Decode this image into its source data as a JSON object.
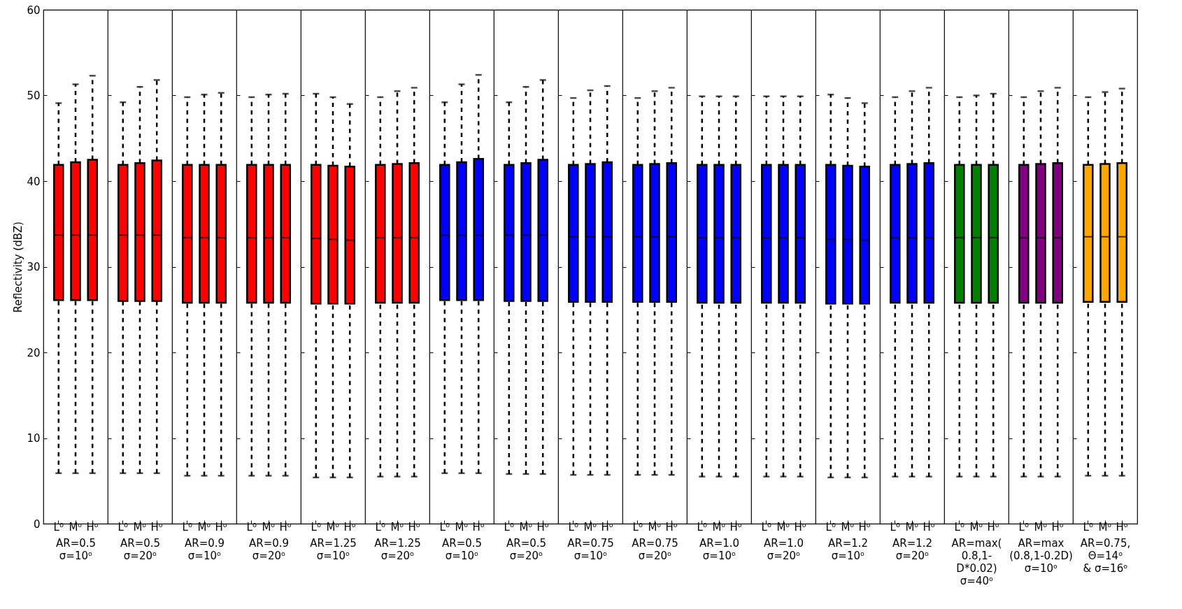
{
  "chart_data": [
    {
      "type": "box",
      "ylabel": "Reflectivity (dBZ)",
      "xlabel": "AR=0.5\nσ=10ᵒ",
      "categories": [
        "L⁰",
        "Mᵒ",
        "Hᵒ"
      ],
      "colors": [
        "#ff0000",
        "#ff0000",
        "#ff0000"
      ],
      "ylim": [
        0,
        60
      ],
      "yticks": [
        0,
        10,
        20,
        30,
        40,
        50,
        60
      ],
      "boxes": [
        {
          "low": 5.9,
          "q1": 26.1,
          "median": 33.7,
          "q3": 41.9,
          "high": 49.1
        },
        {
          "low": 5.9,
          "q1": 26.1,
          "median": 33.7,
          "q3": 42.2,
          "high": 51.3
        },
        {
          "low": 5.9,
          "q1": 26.1,
          "median": 33.7,
          "q3": 42.5,
          "high": 52.3
        }
      ]
    },
    {
      "type": "box",
      "xlabel": "AR=0.5\nσ=20ᵒ",
      "categories": [
        "L⁰",
        "Mᵒ",
        "Hᵒ"
      ],
      "colors": [
        "#ff0000",
        "#ff0000",
        "#ff0000"
      ],
      "ylim": [
        0,
        60
      ],
      "yticks": [
        0,
        10,
        20,
        30,
        40,
        50,
        60
      ],
      "tick_labels": "x",
      "boxes": [
        {
          "low": 5.9,
          "q1": 26.0,
          "median": 33.7,
          "q3": 41.9,
          "high": 49.2
        },
        {
          "low": 5.9,
          "q1": 26.0,
          "median": 33.7,
          "q3": 42.1,
          "high": 51.0
        },
        {
          "low": 5.9,
          "q1": 26.0,
          "median": 33.7,
          "q3": 42.4,
          "high": 51.8
        }
      ]
    },
    {
      "type": "box",
      "xlabel": "AR=0.9\nσ=10ᵒ",
      "categories": [
        "L⁰",
        "Mᵒ",
        "Hᵒ"
      ],
      "colors": [
        "#ff0000",
        "#ff0000",
        "#ff0000"
      ],
      "ylim": [
        0,
        60
      ],
      "yticks": [
        0,
        10,
        20,
        30,
        40,
        50,
        60
      ],
      "tick_labels": "x",
      "boxes": [
        {
          "low": 5.6,
          "q1": 25.8,
          "median": 33.4,
          "q3": 41.9,
          "high": 49.8
        },
        {
          "low": 5.6,
          "q1": 25.8,
          "median": 33.4,
          "q3": 41.9,
          "high": 50.1
        },
        {
          "low": 5.6,
          "q1": 25.8,
          "median": 33.4,
          "q3": 41.9,
          "high": 50.3
        }
      ]
    },
    {
      "type": "box",
      "xlabel": "AR=0.9\nσ=20ᵒ",
      "categories": [
        "L⁰",
        "Mᵒ",
        "Hᵒ"
      ],
      "colors": [
        "#ff0000",
        "#ff0000",
        "#ff0000"
      ],
      "ylim": [
        0,
        60
      ],
      "yticks": [
        0,
        10,
        20,
        30,
        40,
        50,
        60
      ],
      "tick_labels": "x",
      "boxes": [
        {
          "low": 5.6,
          "q1": 25.8,
          "median": 33.4,
          "q3": 41.9,
          "high": 49.8
        },
        {
          "low": 5.6,
          "q1": 25.8,
          "median": 33.4,
          "q3": 41.9,
          "high": 50.1
        },
        {
          "low": 5.6,
          "q1": 25.8,
          "median": 33.4,
          "q3": 41.9,
          "high": 50.2
        }
      ]
    },
    {
      "type": "box",
      "xlabel": "AR=1.25\nσ=10ᵒ",
      "categories": [
        "L⁰",
        "Mᵒ",
        "Hᵒ"
      ],
      "colors": [
        "#ff0000",
        "#ff0000",
        "#ff0000"
      ],
      "ylim": [
        0,
        60
      ],
      "yticks": [
        0,
        10,
        20,
        30,
        40,
        50,
        60
      ],
      "tick_labels": "x",
      "boxes": [
        {
          "low": 5.4,
          "q1": 25.7,
          "median": 33.3,
          "q3": 41.9,
          "high": 50.2
        },
        {
          "low": 5.4,
          "q1": 25.7,
          "median": 33.2,
          "q3": 41.8,
          "high": 49.8
        },
        {
          "low": 5.4,
          "q1": 25.7,
          "median": 33.1,
          "q3": 41.7,
          "high": 49.0
        }
      ]
    },
    {
      "type": "box",
      "xlabel": "AR=1.25\nσ=20ᵒ",
      "categories": [
        "L⁰",
        "Mᵒ",
        "Hᵒ"
      ],
      "colors": [
        "#ff0000",
        "#ff0000",
        "#ff0000"
      ],
      "ylim": [
        0,
        60
      ],
      "yticks": [
        0,
        10,
        20,
        30,
        40,
        50,
        60
      ],
      "tick_labels": "x",
      "boxes": [
        {
          "low": 5.5,
          "q1": 25.8,
          "median": 33.4,
          "q3": 41.9,
          "high": 49.8
        },
        {
          "low": 5.5,
          "q1": 25.8,
          "median": 33.4,
          "q3": 42.0,
          "high": 50.5
        },
        {
          "low": 5.5,
          "q1": 25.8,
          "median": 33.4,
          "q3": 42.1,
          "high": 50.9
        }
      ]
    },
    {
      "type": "box",
      "xlabel": "AR=0.5\nσ=10ᵒ",
      "categories": [
        "L⁰",
        "Mᵒ",
        "Hᵒ"
      ],
      "colors": [
        "#0000ff",
        "#0000ff",
        "#0000ff"
      ],
      "ylim": [
        0,
        60
      ],
      "yticks": [
        0,
        10,
        20,
        30,
        40,
        50,
        60
      ],
      "tick_labels": "x",
      "boxes": [
        {
          "low": 5.9,
          "q1": 26.1,
          "median": 33.7,
          "q3": 41.9,
          "high": 49.2
        },
        {
          "low": 5.9,
          "q1": 26.1,
          "median": 33.7,
          "q3": 42.2,
          "high": 51.3
        },
        {
          "low": 5.9,
          "q1": 26.1,
          "median": 33.7,
          "q3": 42.6,
          "high": 52.4
        }
      ]
    },
    {
      "type": "box",
      "xlabel": "AR=0.5\nσ=20ᵒ",
      "categories": [
        "L⁰",
        "Mᵒ",
        "Hᵒ"
      ],
      "colors": [
        "#0000ff",
        "#0000ff",
        "#0000ff"
      ],
      "ylim": [
        0,
        60
      ],
      "yticks": [
        0,
        10,
        20,
        30,
        40,
        50,
        60
      ],
      "tick_labels": "x",
      "boxes": [
        {
          "low": 5.8,
          "q1": 26.0,
          "median": 33.7,
          "q3": 41.9,
          "high": 49.2
        },
        {
          "low": 5.8,
          "q1": 26.0,
          "median": 33.7,
          "q3": 42.1,
          "high": 51.0
        },
        {
          "low": 5.8,
          "q1": 26.0,
          "median": 33.7,
          "q3": 42.5,
          "high": 51.8
        }
      ]
    },
    {
      "type": "box",
      "xlabel": "AR=0.75\nσ=10ᵒ",
      "categories": [
        "L⁰",
        "Mᵒ",
        "Hᵒ"
      ],
      "colors": [
        "#0000ff",
        "#0000ff",
        "#0000ff"
      ],
      "ylim": [
        0,
        60
      ],
      "yticks": [
        0,
        10,
        20,
        30,
        40,
        50,
        60
      ],
      "tick_labels": "x",
      "boxes": [
        {
          "low": 5.7,
          "q1": 25.9,
          "median": 33.5,
          "q3": 41.9,
          "high": 49.7
        },
        {
          "low": 5.7,
          "q1": 25.9,
          "median": 33.5,
          "q3": 42.0,
          "high": 50.6
        },
        {
          "low": 5.7,
          "q1": 25.9,
          "median": 33.5,
          "q3": 42.2,
          "high": 51.1
        }
      ]
    },
    {
      "type": "box",
      "xlabel": "AR=0.75\nσ=20ᵒ",
      "categories": [
        "L⁰",
        "Mᵒ",
        "Hᵒ"
      ],
      "colors": [
        "#0000ff",
        "#0000ff",
        "#0000ff"
      ],
      "ylim": [
        0,
        60
      ],
      "yticks": [
        0,
        10,
        20,
        30,
        40,
        50,
        60
      ],
      "tick_labels": "x",
      "boxes": [
        {
          "low": 5.7,
          "q1": 25.9,
          "median": 33.5,
          "q3": 41.9,
          "high": 49.7
        },
        {
          "low": 5.7,
          "q1": 25.9,
          "median": 33.5,
          "q3": 42.0,
          "high": 50.5
        },
        {
          "low": 5.7,
          "q1": 25.9,
          "median": 33.5,
          "q3": 42.1,
          "high": 50.9
        }
      ]
    },
    {
      "type": "box",
      "xlabel": "AR=1.0\nσ=10ᵒ",
      "categories": [
        "L⁰",
        "Mᵒ",
        "Hᵒ"
      ],
      "colors": [
        "#0000ff",
        "#0000ff",
        "#0000ff"
      ],
      "ylim": [
        0,
        60
      ],
      "yticks": [
        0,
        10,
        20,
        30,
        40,
        50,
        60
      ],
      "tick_labels": "x",
      "boxes": [
        {
          "low": 5.5,
          "q1": 25.8,
          "median": 33.4,
          "q3": 41.9,
          "high": 49.9
        },
        {
          "low": 5.5,
          "q1": 25.8,
          "median": 33.4,
          "q3": 41.9,
          "high": 49.9
        },
        {
          "low": 5.5,
          "q1": 25.8,
          "median": 33.4,
          "q3": 41.9,
          "high": 49.9
        }
      ]
    },
    {
      "type": "box",
      "xlabel": "AR=1.0\nσ=20ᵒ",
      "categories": [
        "L⁰",
        "Mᵒ",
        "Hᵒ"
      ],
      "colors": [
        "#0000ff",
        "#0000ff",
        "#0000ff"
      ],
      "ylim": [
        0,
        60
      ],
      "yticks": [
        0,
        10,
        20,
        30,
        40,
        50,
        60
      ],
      "tick_labels": "x",
      "boxes": [
        {
          "low": 5.5,
          "q1": 25.8,
          "median": 33.4,
          "q3": 41.9,
          "high": 49.9
        },
        {
          "low": 5.5,
          "q1": 25.8,
          "median": 33.4,
          "q3": 41.9,
          "high": 49.9
        },
        {
          "low": 5.5,
          "q1": 25.8,
          "median": 33.4,
          "q3": 41.9,
          "high": 49.9
        }
      ]
    },
    {
      "type": "box",
      "xlabel": "AR=1.2\nσ=10ᵒ",
      "categories": [
        "L⁰",
        "Mᵒ",
        "Hᵒ"
      ],
      "colors": [
        "#0000ff",
        "#0000ff",
        "#0000ff"
      ],
      "ylim": [
        0,
        60
      ],
      "yticks": [
        0,
        10,
        20,
        30,
        40,
        50,
        60
      ],
      "tick_labels": "x",
      "boxes": [
        {
          "low": 5.4,
          "q1": 25.7,
          "median": 33.2,
          "q3": 41.9,
          "high": 50.1
        },
        {
          "low": 5.4,
          "q1": 25.7,
          "median": 33.2,
          "q3": 41.8,
          "high": 49.7
        },
        {
          "low": 5.4,
          "q1": 25.7,
          "median": 33.1,
          "q3": 41.7,
          "high": 49.1
        }
      ]
    },
    {
      "type": "box",
      "xlabel": "AR=1.2\nσ=20ᵒ",
      "categories": [
        "L⁰",
        "Mᵒ",
        "Hᵒ"
      ],
      "colors": [
        "#0000ff",
        "#0000ff",
        "#0000ff"
      ],
      "ylim": [
        0,
        60
      ],
      "yticks": [
        0,
        10,
        20,
        30,
        40,
        50,
        60
      ],
      "tick_labels": "x",
      "boxes": [
        {
          "low": 5.5,
          "q1": 25.8,
          "median": 33.4,
          "q3": 41.9,
          "high": 49.8
        },
        {
          "low": 5.5,
          "q1": 25.8,
          "median": 33.4,
          "q3": 42.0,
          "high": 50.5
        },
        {
          "low": 5.5,
          "q1": 25.8,
          "median": 33.4,
          "q3": 42.1,
          "high": 50.9
        }
      ]
    },
    {
      "type": "box",
      "xlabel": "AR=max(\n0.8,1-\nD*0.02)\nσ=40ᵒ",
      "categories": [
        "L⁰",
        "Mᵒ",
        "Hᵒ"
      ],
      "colors": [
        "#008000",
        "#008000",
        "#008000"
      ],
      "ylim": [
        0,
        60
      ],
      "yticks": [
        0,
        10,
        20,
        30,
        40,
        50,
        60
      ],
      "tick_labels": "x",
      "boxes": [
        {
          "low": 5.5,
          "q1": 25.8,
          "median": 33.4,
          "q3": 41.9,
          "high": 49.8
        },
        {
          "low": 5.5,
          "q1": 25.8,
          "median": 33.4,
          "q3": 41.9,
          "high": 50.0
        },
        {
          "low": 5.5,
          "q1": 25.8,
          "median": 33.4,
          "q3": 41.9,
          "high": 50.2
        }
      ]
    },
    {
      "type": "box",
      "xlabel": "AR=max\n(0.8,1-0.2D)\nσ=10ᵒ",
      "categories": [
        "L⁰",
        "Mᵒ",
        "Hᵒ"
      ],
      "colors": [
        "#800080",
        "#800080",
        "#800080"
      ],
      "ylim": [
        0,
        60
      ],
      "yticks": [
        0,
        10,
        20,
        30,
        40,
        50,
        60
      ],
      "tick_labels": "x",
      "boxes": [
        {
          "low": 5.5,
          "q1": 25.8,
          "median": 33.4,
          "q3": 41.9,
          "high": 49.8
        },
        {
          "low": 5.5,
          "q1": 25.8,
          "median": 33.4,
          "q3": 42.0,
          "high": 50.5
        },
        {
          "low": 5.5,
          "q1": 25.8,
          "median": 33.4,
          "q3": 42.1,
          "high": 50.9
        }
      ]
    },
    {
      "type": "box",
      "xlabel": "AR=0.75,\nΘ=14ᵒ\n& σ=16ᵒ",
      "categories": [
        "L⁰",
        "Mᵒ",
        "Hᵒ"
      ],
      "colors": [
        "#ffa500",
        "#ffa500",
        "#ffa500"
      ],
      "ylim": [
        0,
        60
      ],
      "yticks": [
        0,
        10,
        20,
        30,
        40,
        50,
        60
      ],
      "tick_labels": "x",
      "boxes": [
        {
          "low": 5.6,
          "q1": 25.9,
          "median": 33.5,
          "q3": 41.9,
          "high": 49.8
        },
        {
          "low": 5.6,
          "q1": 25.9,
          "median": 33.5,
          "q3": 42.0,
          "high": 50.4
        },
        {
          "low": 5.6,
          "q1": 25.9,
          "median": 33.5,
          "q3": 42.1,
          "high": 50.8
        }
      ]
    }
  ]
}
